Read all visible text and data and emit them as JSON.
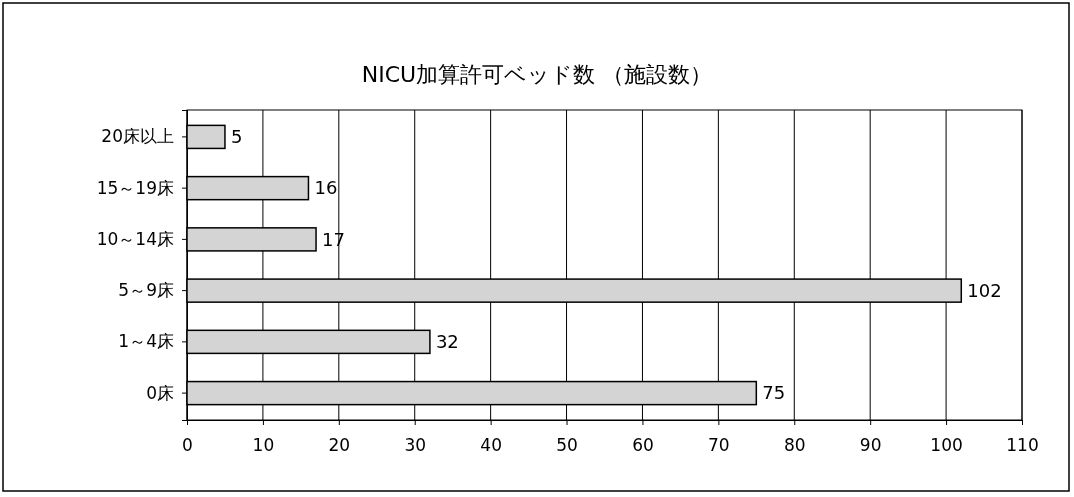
{
  "chart_data": {
    "type": "bar",
    "orientation": "horizontal",
    "title": "NICU加算許可ベッド数 （施設数）",
    "categories": [
      "20床以上",
      "15～19床",
      "10～14床",
      "5～9床",
      "1～4床",
      "0床"
    ],
    "values": [
      5,
      16,
      17,
      102,
      32,
      75
    ],
    "color": "#d4d4d4",
    "xlim": [
      0,
      110
    ],
    "xticks": [
      0,
      10,
      20,
      30,
      40,
      50,
      60,
      70,
      80,
      90,
      100,
      110
    ],
    "grid": "x",
    "data_labels": true
  }
}
